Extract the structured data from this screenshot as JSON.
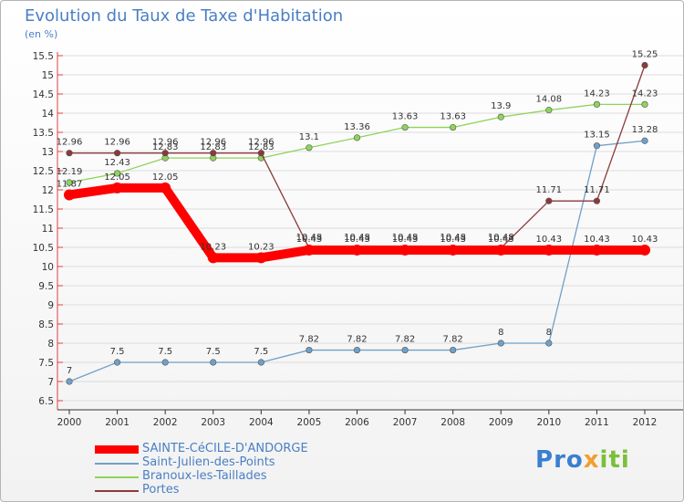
{
  "header": {
    "title": "Evolution du Taux de Taxe d'Habitation",
    "unit": "(en %)"
  },
  "brand": {
    "text": "Proxiti",
    "colors": [
      "#3a7fd0",
      "#7bbf3a",
      "#f0a030"
    ]
  },
  "chart_data": {
    "type": "line",
    "title": "Evolution du Taux de Taxe d'Habitation",
    "ylabel": "(en %)",
    "xlabel": "",
    "x": [
      "2000",
      "2001",
      "2002",
      "2003",
      "2004",
      "2005",
      "2006",
      "2007",
      "2008",
      "2009",
      "2010",
      "2011",
      "2012"
    ],
    "ylim": [
      6.5,
      15.5
    ],
    "yticks": [
      "6.5",
      "7",
      "7.5",
      "8",
      "8.5",
      "9",
      "9.5",
      "10",
      "10.5",
      "11",
      "11.5",
      "12",
      "12.5",
      "13",
      "13.5",
      "14",
      "14.5",
      "15",
      "15.5"
    ],
    "grid": "horizontal",
    "legend_position": "bottom-left",
    "series": [
      {
        "name": "SAINTE-CéCILE-D'ANDORGE",
        "color": "#ff0000",
        "emphasis": true,
        "values": [
          11.87,
          12.05,
          12.05,
          10.23,
          10.23,
          10.43,
          10.43,
          10.43,
          10.43,
          10.43,
          10.43,
          10.43,
          10.43
        ],
        "labels": [
          "11.87",
          "12.05",
          "12.05",
          "10.23",
          "10.23",
          "10.43",
          "10.43",
          "10.43",
          "10.43",
          "10.43",
          "10.43",
          "10.43",
          "10.43"
        ]
      },
      {
        "name": "Saint-Julien-des-Points",
        "color": "#6fa0c8",
        "emphasis": false,
        "values": [
          7,
          7.5,
          7.5,
          7.5,
          7.5,
          7.82,
          7.82,
          7.82,
          7.82,
          8,
          8,
          13.15,
          13.28
        ],
        "labels": [
          "7",
          "7.5",
          "7.5",
          "7.5",
          "7.5",
          "7.82",
          "7.82",
          "7.82",
          "7.82",
          "8",
          "8",
          "13.15",
          "13.28"
        ]
      },
      {
        "name": "Branoux-les-Taillades",
        "color": "#8ed35a",
        "emphasis": false,
        "values": [
          12.19,
          12.43,
          12.83,
          12.83,
          12.83,
          13.1,
          13.36,
          13.63,
          13.63,
          13.9,
          14.08,
          14.23,
          14.23
        ],
        "labels": [
          "12.19",
          "12.43",
          "12.83",
          "12.83",
          "12.83",
          "13.1",
          "13.36",
          "13.63",
          "13.63",
          "13.9",
          "14.08",
          "14.23",
          "14.23"
        ]
      },
      {
        "name": "Portes",
        "color": "#8b3a3a",
        "emphasis": false,
        "values": [
          12.96,
          12.96,
          12.96,
          12.96,
          12.96,
          10.48,
          10.48,
          10.48,
          10.48,
          10.48,
          11.71,
          11.71,
          15.25
        ],
        "labels": [
          "12.96",
          "12.96",
          "12.96",
          "12.96",
          "12.96",
          "10.48",
          "10.48",
          "10.48",
          "10.48",
          "10.48",
          "11.71",
          "11.71",
          "15.25"
        ]
      }
    ]
  }
}
